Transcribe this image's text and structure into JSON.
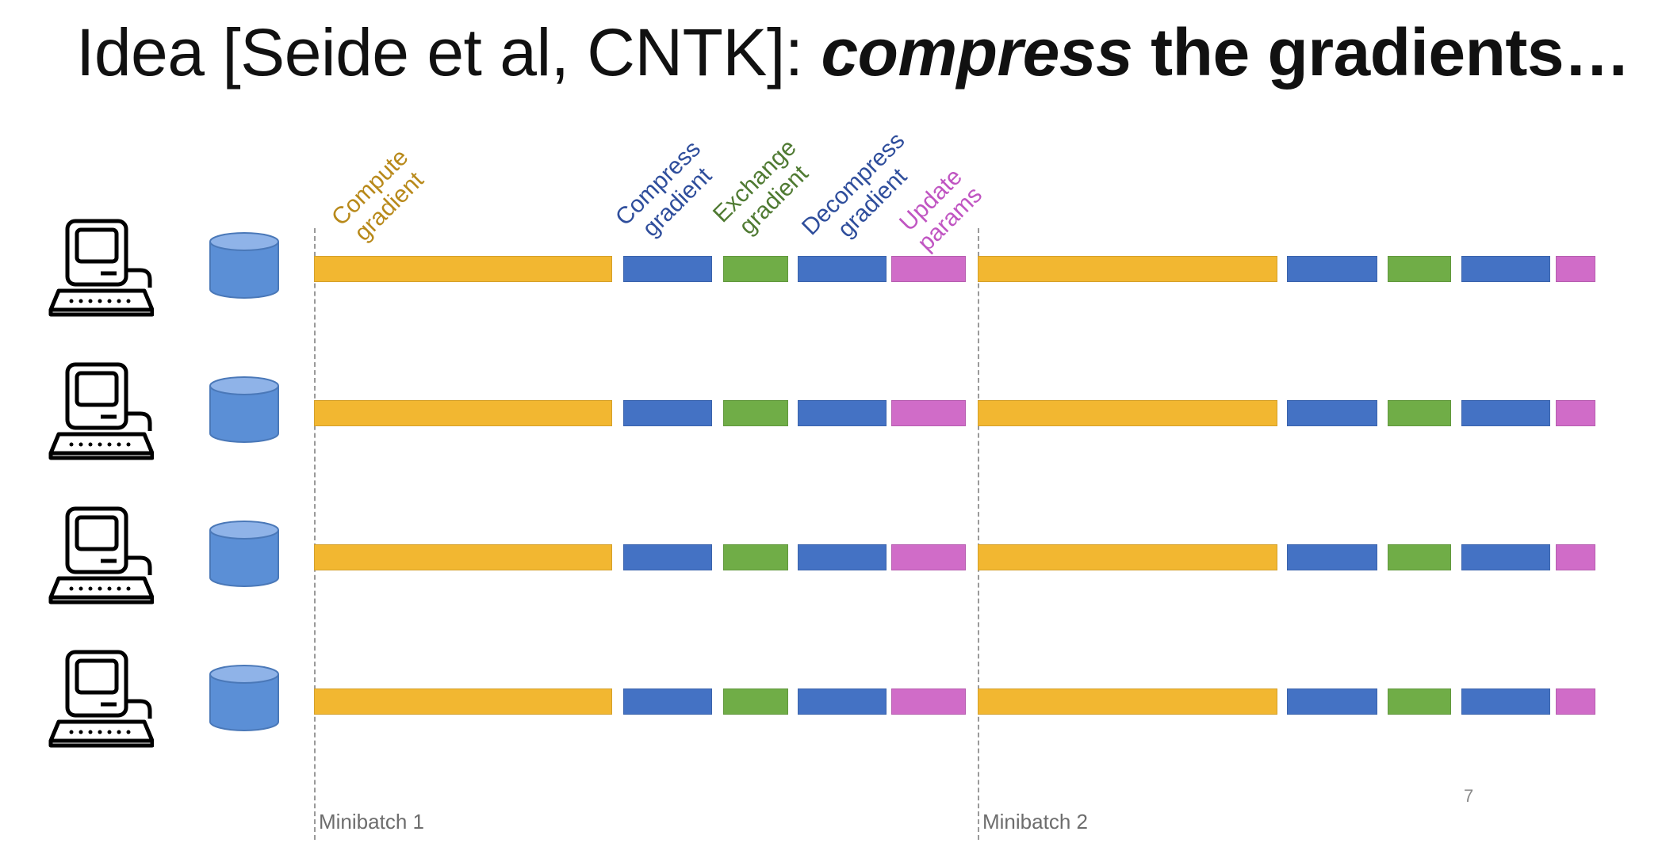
{
  "slide": {
    "title_prefix": "Idea [Seide et al, CNTK]: ",
    "title_emphasis": "compress",
    "title_suffix": " the gradients…",
    "page_number": "7"
  },
  "steps": [
    {
      "line1": "Compute",
      "line2": "gradient",
      "color": "#f2b731"
    },
    {
      "line1": "Compress",
      "line2": "gradient",
      "color": "#4472c4"
    },
    {
      "line1": "Exchange",
      "line2": "gradient",
      "color": "#70ad47"
    },
    {
      "line1": "Decompress",
      "line2": "gradient",
      "color": "#4472c4"
    },
    {
      "line1": "Update",
      "line2": "params",
      "color": "#d06cc8"
    }
  ],
  "label_colors": {
    "compute": "#b8891a",
    "compress": "#2f4e9c",
    "exchange": "#4f7a32",
    "decompress": "#2f4e9c",
    "update": "#c055c2"
  },
  "minibatches": [
    "Minibatch 1",
    "Minibatch 2"
  ],
  "workers": 4,
  "icons": {
    "computer": "computer-icon",
    "storage": "database-icon"
  }
}
